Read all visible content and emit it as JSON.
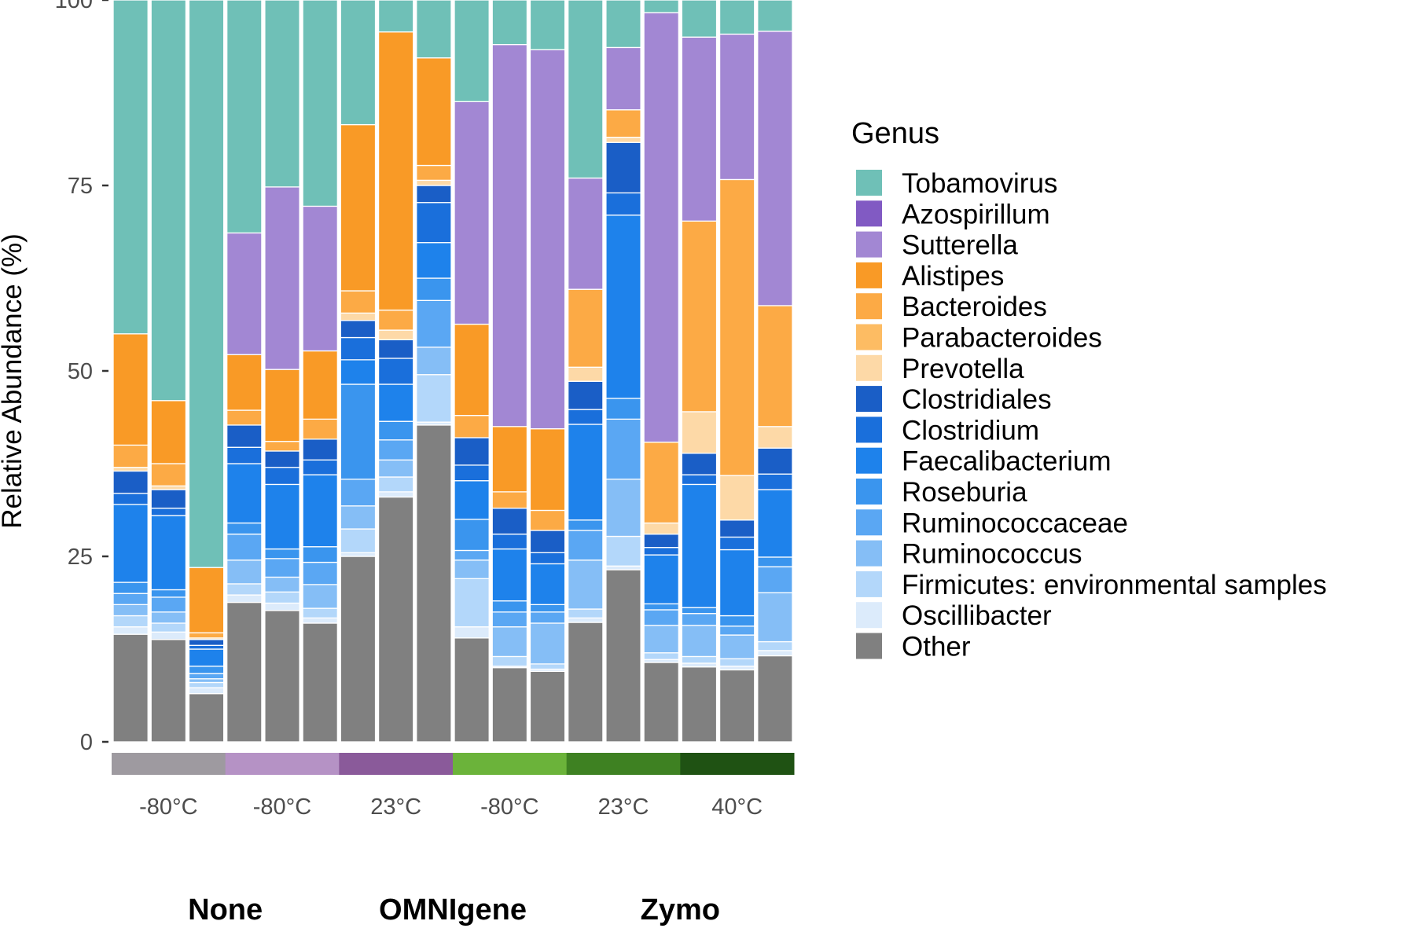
{
  "chart_data": {
    "type": "bar",
    "stacked": true,
    "ylabel": "Relative Abundance (%)",
    "ylim": [
      0,
      100
    ],
    "yticks": [
      0,
      25,
      50,
      75,
      100
    ],
    "grid": false,
    "legend": {
      "title": "Genus",
      "placement": "right"
    },
    "genera": [
      {
        "name": "Other",
        "color": "#808080"
      },
      {
        "name": "Oscillibacter",
        "color": "#DCEBFB"
      },
      {
        "name": "Firmicutes: environmental samples",
        "color": "#B3D7FA"
      },
      {
        "name": "Ruminococcus",
        "color": "#85BEF6"
      },
      {
        "name": "Ruminococcaceae",
        "color": "#5AA7F3"
      },
      {
        "name": "Roseburia",
        "color": "#3A95EE"
      },
      {
        "name": "Faecalibacterium",
        "color": "#1E82EB"
      },
      {
        "name": "Clostridium",
        "color": "#1A6FDB"
      },
      {
        "name": "Clostridiales",
        "color": "#1A5EC6"
      },
      {
        "name": "Prevotella",
        "color": "#FDD9A7"
      },
      {
        "name": "Parabacteroides",
        "color": "#FDBC63"
      },
      {
        "name": "Bacteroides",
        "color": "#FCAA45"
      },
      {
        "name": "Alistipes",
        "color": "#F99A26"
      },
      {
        "name": "Sutterella",
        "color": "#A287D3"
      },
      {
        "name": "Azospirillum",
        "color": "#815AC3"
      },
      {
        "name": "Tobamovirus",
        "color": "#6FC0B7"
      }
    ],
    "legend_order": [
      "Tobamovirus",
      "Azospirillum",
      "Sutterella",
      "Alistipes",
      "Bacteroides",
      "Parabacteroides",
      "Prevotella",
      "Clostridiales",
      "Clostridium",
      "Faecalibacterium",
      "Roseburia",
      "Ruminococcaceae",
      "Ruminococcus",
      "Firmicutes: environmental samples",
      "Oscillibacter",
      "Other"
    ],
    "samples": [
      {
        "bounds": [
          14.5,
          15.5,
          17,
          18.5,
          20,
          21.5,
          32,
          33.5,
          36.5,
          37,
          37,
          40,
          55,
          55,
          55,
          100
        ]
      },
      {
        "bounds": [
          13.8,
          14.8,
          16,
          17.5,
          19.5,
          20.5,
          30.5,
          31.5,
          34,
          34.5,
          34.5,
          37.5,
          46,
          46,
          46,
          100
        ]
      },
      {
        "bounds": [
          6.5,
          7.3,
          8,
          8.5,
          9.2,
          10.2,
          12.5,
          13,
          13.8,
          14,
          14,
          14.7,
          23.5,
          23.5,
          23.5,
          100
        ]
      },
      {
        "bounds": [
          18.8,
          19.8,
          21.3,
          24.5,
          28,
          29.5,
          37.5,
          39.7,
          42.7,
          42.7,
          42.7,
          44.7,
          52.2,
          68.6,
          68.6,
          100
        ]
      },
      {
        "bounds": [
          17.7,
          18.7,
          20.2,
          22.2,
          24.7,
          26,
          34.7,
          37,
          39.2,
          39.2,
          39.2,
          40.5,
          50.2,
          74.8,
          74.8,
          100
        ]
      },
      {
        "bounds": [
          16,
          16.7,
          18,
          21.2,
          24.2,
          26.3,
          36,
          38,
          40.8,
          40.8,
          40.8,
          43.5,
          52.7,
          72.2,
          72.2,
          100
        ]
      },
      {
        "bounds": [
          25,
          25.5,
          28.7,
          31.8,
          35.4,
          48.2,
          51.5,
          54.5,
          56.8,
          57.8,
          57.8,
          60.8,
          83.2,
          83.2,
          83.2,
          100
        ]
      },
      {
        "bounds": [
          33,
          33.7,
          35.7,
          38,
          40.7,
          43.2,
          48.2,
          51.7,
          54.2,
          55.5,
          55.5,
          58.2,
          95.7,
          95.7,
          95.7,
          100
        ]
      },
      {
        "bounds": [
          42.7,
          43.1,
          49.5,
          53.2,
          59.5,
          62.5,
          67.3,
          72.7,
          75,
          75.7,
          75.7,
          77.7,
          92.2,
          92.2,
          92.2,
          100
        ]
      },
      {
        "bounds": [
          14,
          15.5,
          22,
          24.5,
          25.8,
          30,
          35.2,
          37.3,
          41,
          41,
          41,
          44,
          56.3,
          86.3,
          86.3,
          100
        ]
      },
      {
        "bounds": [
          10,
          10.2,
          11.5,
          15.5,
          17.5,
          19,
          26,
          28,
          31.5,
          31.5,
          31.5,
          33.7,
          42.5,
          94,
          94,
          100
        ]
      },
      {
        "bounds": [
          9.5,
          9.8,
          10.5,
          16,
          17.5,
          18.5,
          24,
          25.5,
          28.5,
          28.5,
          28.5,
          31.2,
          42.2,
          93.3,
          93.3,
          100
        ]
      },
      {
        "bounds": [
          16.1,
          16.7,
          17.9,
          24.5,
          28.5,
          29.9,
          42.8,
          44.8,
          48.6,
          50.5,
          50.5,
          61,
          61,
          76,
          76,
          100
        ]
      },
      {
        "bounds": [
          23.2,
          23.7,
          27.7,
          35.4,
          43.5,
          46.3,
          71,
          74,
          80.8,
          81.5,
          81.5,
          85.2,
          85.2,
          93.6,
          93.6,
          100
        ]
      },
      {
        "bounds": [
          10.7,
          11.1,
          12,
          15.7,
          17.8,
          18.6,
          25.2,
          26.2,
          28,
          29.5,
          29.5,
          40.4,
          40.4,
          98.3,
          98.3,
          100
        ]
      },
      {
        "bounds": [
          10.1,
          10.6,
          11.5,
          15.7,
          17.3,
          18.1,
          34.7,
          36,
          38.9,
          44.5,
          44.5,
          70.2,
          70.2,
          95,
          95,
          100
        ]
      },
      {
        "bounds": [
          9.7,
          10.2,
          11.2,
          14.4,
          15.6,
          17,
          25.9,
          27.6,
          29.9,
          35.9,
          35.9,
          75.8,
          75.8,
          95.4,
          95.4,
          100
        ]
      },
      {
        "bounds": [
          11.6,
          12.3,
          13.5,
          20.1,
          23.6,
          24.9,
          34,
          36.1,
          39.6,
          42.5,
          42.5,
          58.8,
          58.8,
          95.8,
          95.8,
          100
        ]
      }
    ],
    "conditions": [
      {
        "label": "-80°C",
        "color": "#9E9AA0"
      },
      {
        "label": "-80°C",
        "color": "#B592C5"
      },
      {
        "label": "23°C",
        "color": "#8A5A9A"
      },
      {
        "label": "-80°C",
        "color": "#6BB33A"
      },
      {
        "label": "23°C",
        "color": "#3E8122"
      },
      {
        "label": "40°C",
        "color": "#1F5213"
      }
    ],
    "groups": [
      {
        "label": "None"
      },
      {
        "label": "OMNIgene"
      },
      {
        "label": "Zymo"
      }
    ]
  }
}
